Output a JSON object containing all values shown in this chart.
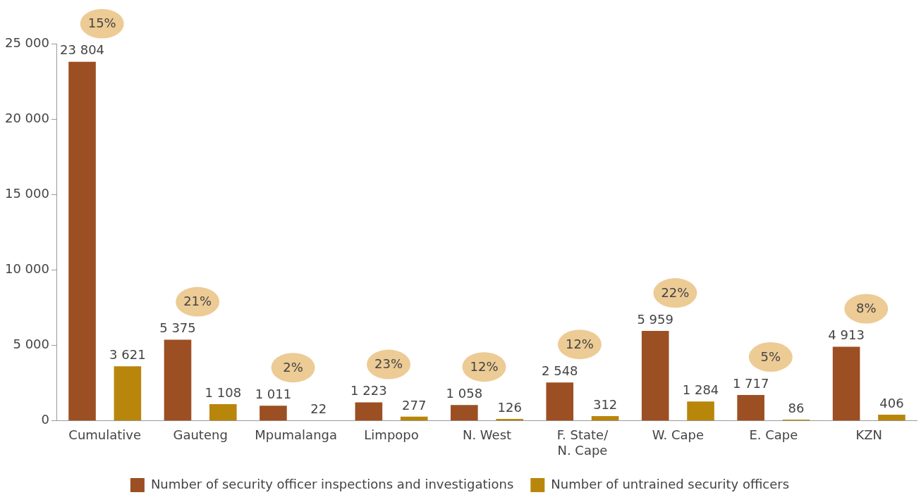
{
  "chart_data": {
    "type": "bar",
    "categories": [
      "Cumulative",
      "Gauteng",
      "Mpumalanga",
      "Limpopo",
      "N. West",
      "F. State/\nN. Cape",
      "W. Cape",
      "E. Cape",
      "KZN"
    ],
    "series": [
      {
        "name": "Number of security officer inspections and investigations",
        "color": "#9c4f22",
        "values": [
          23804,
          5375,
          1011,
          1223,
          1058,
          2548,
          5959,
          1717,
          4913
        ],
        "value_labels": [
          "23 804",
          "5 375",
          "1 011",
          "1 223",
          "1 058",
          "2 548",
          "5 959",
          "1 717",
          "4 913"
        ]
      },
      {
        "name": "Number of untrained security officers",
        "color": "#b8860b",
        "values": [
          3621,
          1108,
          22,
          277,
          126,
          312,
          1284,
          86,
          406
        ],
        "value_labels": [
          "3 621",
          "1 108",
          "22",
          "277",
          "126",
          "312",
          "1 284",
          "86",
          "406"
        ]
      }
    ],
    "ylim": [
      0,
      25000
    ],
    "yticks": [
      {
        "value": 0,
        "label": "0"
      },
      {
        "value": 5000,
        "label": "5 000"
      },
      {
        "value": 10000,
        "label": "10 000"
      },
      {
        "value": 15000,
        "label": "15 000"
      },
      {
        "value": 20000,
        "label": "20 000"
      },
      {
        "value": 25000,
        "label": "25 000"
      }
    ],
    "annotations": [
      "15%",
      "21%",
      "2%",
      "23%",
      "12%",
      "12%",
      "22%",
      "5%",
      "8%"
    ],
    "grid": false,
    "legend": "bottom"
  }
}
